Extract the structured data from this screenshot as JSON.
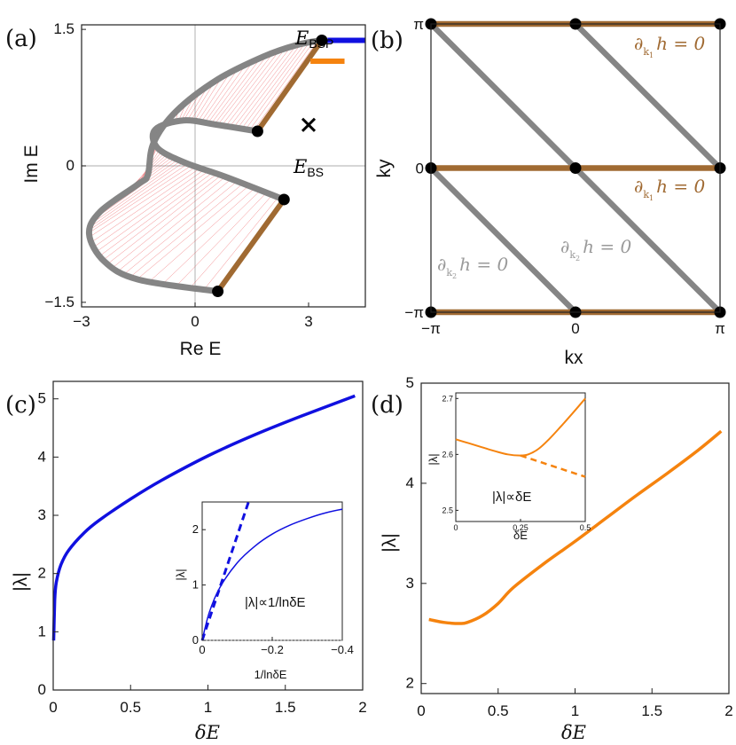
{
  "colors": {
    "blue": "#1010e0",
    "orange": "#f5830e",
    "brown": "#a06a32",
    "gray": "#858585",
    "red": "#e8252a"
  },
  "chart_data": [
    {
      "panel": "(a)",
      "type": "scatter",
      "description_text": {
        "e_bsp_main": "E",
        "e_bsp_sub": "BSP",
        "e_bs_main": "E",
        "e_bs_sub": "BS"
      },
      "xlabel": "Re E",
      "ylabel": "Im E",
      "xlim": [
        -3.0,
        4.5
      ],
      "ylim": [
        -1.55,
        1.55
      ],
      "xticks": [
        {
          "v": -3,
          "label": "−3"
        },
        {
          "v": 0,
          "label": "0"
        },
        {
          "v": 3,
          "label": "3"
        }
      ],
      "yticks": [
        {
          "v": 1.5,
          "label": "1.5"
        },
        {
          "v": 0,
          "label": "0"
        },
        {
          "v": -1.5,
          "label": "−1.5"
        }
      ],
      "spectrum_outer": [
        [
          3.35,
          1.38
        ],
        [
          2.7,
          1.33
        ],
        [
          1.8,
          1.2
        ],
        [
          0.6,
          0.95
        ],
        [
          -0.5,
          0.6
        ],
        [
          -1.1,
          0.25
        ],
        [
          -1.25,
          -0.1
        ],
        [
          -1.5,
          -0.2
        ],
        [
          -2.5,
          -0.5
        ],
        [
          -2.8,
          -0.75
        ],
        [
          -2.4,
          -1.05
        ],
        [
          -1.5,
          -1.25
        ],
        [
          0.6,
          -1.38
        ]
      ],
      "spectrum_inner": [
        [
          1.65,
          0.38
        ],
        [
          0.6,
          0.45
        ],
        [
          -0.3,
          0.5
        ],
        [
          -1.05,
          0.4
        ],
        [
          -1.0,
          0.2
        ],
        [
          -0.3,
          0.04
        ],
        [
          0.8,
          -0.12
        ],
        [
          2.35,
          -0.37
        ]
      ],
      "brown_edges": [
        [
          [
            3.35,
            1.38
          ],
          [
            1.65,
            0.38
          ]
        ],
        [
          [
            2.35,
            -0.37
          ],
          [
            0.6,
            -1.38
          ]
        ]
      ],
      "points": [
        [
          3.35,
          1.38
        ],
        [
          1.65,
          0.38
        ],
        [
          2.35,
          -0.37
        ],
        [
          0.6,
          -1.38
        ]
      ],
      "e_bs": [
        3.0,
        0.45
      ],
      "legend_blue": [
        [
          3.5,
          1.38
        ],
        [
          4.5,
          1.38
        ]
      ],
      "legend_orange": [
        [
          3.05,
          1.15
        ],
        [
          3.95,
          1.15
        ]
      ]
    },
    {
      "panel": "(b)",
      "type": "line",
      "xlabel": "kx",
      "ylabel": "ky",
      "xlim": [
        -3.14159,
        3.14159
      ],
      "ylim": [
        -3.14159,
        3.14159
      ],
      "xticks": [
        {
          "v": -3.14159,
          "label": "−π"
        },
        {
          "v": 0,
          "label": "0"
        },
        {
          "v": 3.14159,
          "label": "π"
        }
      ],
      "yticks": [
        {
          "v": 3.14159,
          "label": "π"
        },
        {
          "v": 0,
          "label": "0"
        },
        {
          "v": -3.14159,
          "label": "−π"
        }
      ],
      "brown_lines_ky": [
        3.14159,
        0,
        -3.14159
      ],
      "gray_lines": [
        [
          [
            -3.14159,
            3.14159
          ],
          [
            3.14159,
            -3.14159
          ]
        ],
        [
          [
            0,
            3.14159
          ],
          [
            3.14159,
            0
          ]
        ],
        [
          [
            -3.14159,
            0
          ],
          [
            0,
            -3.14159
          ]
        ]
      ],
      "points": [
        [
          -3.14159,
          3.14159
        ],
        [
          0,
          3.14159
        ],
        [
          3.14159,
          3.14159
        ],
        [
          -3.14159,
          0
        ],
        [
          0,
          0
        ],
        [
          3.14159,
          0
        ],
        [
          -3.14159,
          -3.14159
        ],
        [
          0,
          -3.14159
        ],
        [
          3.14159,
          -3.14159
        ]
      ],
      "annotations": {
        "brown_text": "∂",
        "k1_sub": "k",
        "k1_subsub": "1",
        "h_eq": "h = 0",
        "k2_sub": "k",
        "k2_subsub": "2"
      }
    },
    {
      "panel": "(c)",
      "type": "line",
      "xlabel": "δE",
      "ylabel": "|λ|",
      "xlim": [
        0,
        2
      ],
      "ylim": [
        0,
        5.3
      ],
      "xticks": [
        {
          "v": 0,
          "label": "0"
        },
        {
          "v": 0.5,
          "label": "0.5"
        },
        {
          "v": 1,
          "label": "1"
        },
        {
          "v": 1.5,
          "label": "1.5"
        },
        {
          "v": 2,
          "label": "2"
        }
      ],
      "yticks": [
        {
          "v": 0,
          "label": "0"
        },
        {
          "v": 1,
          "label": "1"
        },
        {
          "v": 2,
          "label": "2"
        },
        {
          "v": 3,
          "label": "3"
        },
        {
          "v": 4,
          "label": "4"
        },
        {
          "v": 5,
          "label": "5"
        }
      ],
      "series": [
        {
          "name": "|λ|",
          "x": [
            0.003,
            0.01,
            0.02,
            0.05,
            0.1,
            0.2,
            0.3,
            0.5,
            0.7,
            1.0,
            1.3,
            1.6,
            1.95
          ],
          "y": [
            0.85,
            1.55,
            1.85,
            2.15,
            2.4,
            2.7,
            2.92,
            3.28,
            3.6,
            4.02,
            4.38,
            4.7,
            5.05
          ]
        }
      ],
      "inset": {
        "xlabel": "1/lnδE",
        "ylabel": "|λ|",
        "xlim": [
          0,
          -0.4
        ],
        "ylim": [
          0,
          2.5
        ],
        "xticks": [
          {
            "v": 0,
            "label": "0"
          },
          {
            "v": -0.2,
            "label": "−0.2"
          },
          {
            "v": -0.4,
            "label": "−0.4"
          }
        ],
        "yticks": [
          {
            "v": 0,
            "label": "0"
          },
          {
            "v": 1,
            "label": "1"
          },
          {
            "v": 2,
            "label": "2"
          }
        ],
        "annotation": "|λ|∝1/lnδE",
        "solid": {
          "x": [
            0,
            -0.02,
            -0.05,
            -0.1,
            -0.15,
            -0.2,
            -0.25,
            -0.3,
            -0.35,
            -0.4
          ],
          "y": [
            0,
            0.5,
            0.95,
            1.4,
            1.7,
            1.92,
            2.08,
            2.2,
            2.3,
            2.37
          ]
        },
        "dashed": {
          "x": [
            0,
            -0.135
          ],
          "y": [
            0,
            2.55
          ]
        }
      }
    },
    {
      "panel": "(d)",
      "type": "line",
      "xlabel": "δE",
      "ylabel": "|λ|",
      "xlim": [
        0,
        2
      ],
      "ylim": [
        1.9,
        5.0
      ],
      "xticks": [
        {
          "v": 0,
          "label": "0"
        },
        {
          "v": 0.5,
          "label": "0.5"
        },
        {
          "v": 1,
          "label": "1"
        },
        {
          "v": 1.5,
          "label": "1.5"
        },
        {
          "v": 2,
          "label": "2"
        }
      ],
      "yticks": [
        {
          "v": 2,
          "label": "2"
        },
        {
          "v": 3,
          "label": "3"
        },
        {
          "v": 4,
          "label": "4"
        },
        {
          "v": 5,
          "label": "5"
        }
      ],
      "series": [
        {
          "name": "|λ|",
          "x": [
            0.05,
            0.15,
            0.25,
            0.3,
            0.4,
            0.5,
            0.6,
            0.8,
            1.0,
            1.2,
            1.4,
            1.6,
            1.8,
            1.95
          ],
          "y": [
            2.64,
            2.61,
            2.6,
            2.61,
            2.68,
            2.8,
            2.96,
            3.2,
            3.42,
            3.65,
            3.88,
            4.1,
            4.33,
            4.52
          ]
        }
      ],
      "inset": {
        "xlabel": "δE",
        "ylabel": "|λ|",
        "xlim": [
          0,
          0.5
        ],
        "ylim": [
          2.48,
          2.71
        ],
        "xticks": [
          {
            "v": 0,
            "label": "0"
          },
          {
            "v": 0.25,
            "label": "0.25"
          },
          {
            "v": 0.5,
            "label": "0.5"
          }
        ],
        "yticks": [
          {
            "v": 2.5,
            "label": "2.5"
          },
          {
            "v": 2.6,
            "label": "2.6"
          },
          {
            "v": 2.7,
            "label": "2.7"
          }
        ],
        "annotation": "|λ|∝δE",
        "solid": {
          "x": [
            0,
            0.05,
            0.1,
            0.15,
            0.2,
            0.25,
            0.28,
            0.32,
            0.36,
            0.4,
            0.45,
            0.5
          ],
          "y": [
            2.627,
            2.62,
            2.613,
            2.606,
            2.6,
            2.598,
            2.6,
            2.61,
            2.627,
            2.647,
            2.673,
            2.7
          ]
        },
        "dashed": {
          "x": [
            0.25,
            0.5
          ],
          "y": [
            2.598,
            2.56
          ]
        }
      }
    }
  ],
  "labels": {
    "a": "(a)",
    "b": "(b)",
    "c": "(c)",
    "d": "(d)"
  }
}
